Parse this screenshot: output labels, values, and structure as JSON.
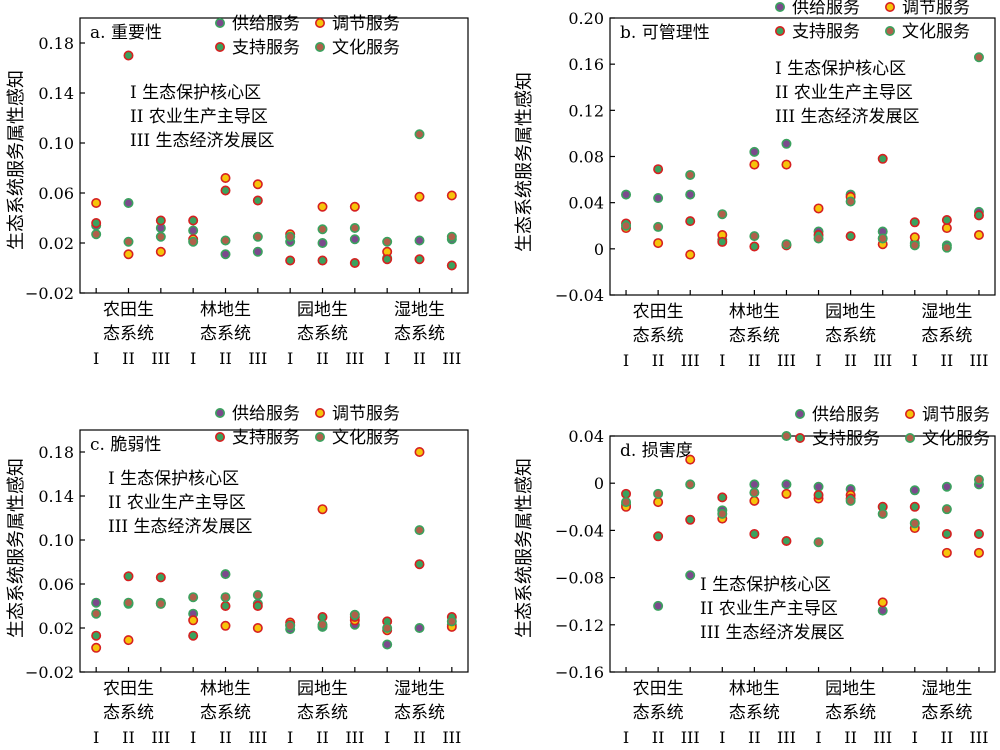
{
  "colors": {
    "supply": "#7b4a8c",
    "regulating": "#f6c40a",
    "support": "#3aa25e",
    "cultural": "#b0604a",
    "supply_ring": "#3aa25e",
    "regulating_ring": "#d62020",
    "support_ring": "#d62020",
    "cultural_ring": "#3aa25e"
  },
  "shared": {
    "ylabel": "生态系统服务属性感知",
    "legend": [
      "供给服务",
      "调节服务",
      "支持服务",
      "文化服务"
    ],
    "zone_labels": [
      "I 生态保护核心区",
      "II 农业生产主导区",
      "III 生态经济发展区"
    ],
    "groups": [
      "农田生\n态系统",
      "林地生\n态系统",
      "园地生\n态系统",
      "湿地生\n态系统"
    ],
    "zones": [
      "I",
      "II",
      "III"
    ]
  },
  "chart_data": [
    {
      "type": "scatter",
      "panel": "a",
      "title": "a. 重要性",
      "ylim": [
        -0.02,
        0.2
      ],
      "yticks": [
        -0.02,
        0.02,
        0.06,
        0.1,
        0.14,
        0.18
      ],
      "ytick_labels": [
        "−0.02",
        "0.02",
        "0.06",
        "0.10",
        "0.14",
        "0.18"
      ],
      "series": [
        {
          "name": "供给服务",
          "values": [
            0.034,
            0.052,
            0.032,
            0.03,
            0.011,
            0.013,
            0.021,
            0.02,
            0.023,
            0.008,
            0.022,
            0.023
          ]
        },
        {
          "name": "调节服务",
          "values": [
            0.052,
            0.011,
            0.013,
            0.023,
            0.072,
            0.067,
            0.027,
            0.049,
            0.049,
            0.013,
            0.057,
            0.058
          ]
        },
        {
          "name": "支持服务",
          "values": [
            0.036,
            0.17,
            0.038,
            0.038,
            0.062,
            0.054,
            0.006,
            0.006,
            0.004,
            0.007,
            0.007,
            0.002
          ]
        },
        {
          "name": "文化服务",
          "values": [
            0.027,
            0.021,
            0.025,
            0.021,
            0.022,
            0.025,
            0.025,
            0.031,
            0.032,
            0.021,
            0.107,
            0.025
          ]
        }
      ]
    },
    {
      "type": "scatter",
      "panel": "b",
      "title": "b. 可管理性",
      "ylim": [
        -0.04,
        0.2
      ],
      "yticks": [
        -0.04,
        0,
        0.04,
        0.08,
        0.12,
        0.16,
        0.2
      ],
      "ytick_labels": [
        "−0.04",
        "0",
        "0.04",
        "0.08",
        "0.12",
        "0.16",
        "0.20"
      ],
      "series": [
        {
          "name": "供给服务",
          "values": [
            0.047,
            0.044,
            0.047,
            0.008,
            0.084,
            0.091,
            0.015,
            0.047,
            0.015,
            0.005,
            0.003,
            0.032
          ]
        },
        {
          "name": "调节服务",
          "values": [
            0.018,
            0.005,
            -0.005,
            0.012,
            0.073,
            0.073,
            0.035,
            0.045,
            0.004,
            0.01,
            0.018,
            0.012
          ]
        },
        {
          "name": "支持服务",
          "values": [
            0.022,
            0.069,
            0.024,
            0.006,
            0.002,
            0.003,
            0.012,
            0.011,
            0.078,
            0.023,
            0.025,
            0.029
          ]
        },
        {
          "name": "文化服务",
          "values": [
            0.02,
            0.019,
            0.064,
            0.03,
            0.011,
            0.004,
            0.009,
            0.041,
            0.009,
            0.003,
            0.001,
            0.166
          ]
        }
      ]
    },
    {
      "type": "scatter",
      "panel": "c",
      "title": "c. 脆弱性",
      "ylim": [
        -0.02,
        0.2
      ],
      "yticks": [
        -0.02,
        0.02,
        0.06,
        0.1,
        0.14,
        0.18
      ],
      "ytick_labels": [
        "−0.02",
        "0.02",
        "0.06",
        "0.10",
        "0.14",
        "0.18"
      ],
      "series": [
        {
          "name": "供给服务",
          "values": [
            0.043,
            0.042,
            0.043,
            0.033,
            0.069,
            0.042,
            0.019,
            0.021,
            0.023,
            0.005,
            0.02,
            0.023
          ]
        },
        {
          "name": "调节服务",
          "values": [
            0.002,
            0.009,
            0.042,
            0.027,
            0.022,
            0.02,
            0.025,
            0.128,
            0.027,
            0.018,
            0.18,
            0.021
          ]
        },
        {
          "name": "支持服务",
          "values": [
            0.013,
            0.067,
            0.066,
            0.013,
            0.04,
            0.04,
            0.023,
            0.03,
            0.03,
            0.026,
            0.078,
            0.03
          ]
        },
        {
          "name": "文化服务",
          "values": [
            0.033,
            0.043,
            0.042,
            0.048,
            0.048,
            0.05,
            0.022,
            0.023,
            0.032,
            0.02,
            0.109,
            0.026
          ]
        }
      ]
    },
    {
      "type": "scatter",
      "panel": "d",
      "title": "d. 损害度",
      "ylim": [
        -0.16,
        0.04
      ],
      "yticks": [
        -0.16,
        -0.12,
        -0.08,
        -0.04,
        0,
        0.04
      ],
      "ytick_labels": [
        "−0.16",
        "−0.12",
        "−0.08",
        "−0.04",
        "0",
        "0.04"
      ],
      "series": [
        {
          "name": "供给服务",
          "values": [
            -0.018,
            -0.104,
            -0.078,
            -0.023,
            -0.001,
            -0.001,
            -0.003,
            -0.005,
            -0.108,
            -0.006,
            -0.003,
            -0.001
          ]
        },
        {
          "name": "调节服务",
          "values": [
            -0.02,
            -0.016,
            0.02,
            -0.03,
            -0.015,
            -0.009,
            -0.013,
            -0.01,
            -0.101,
            -0.038,
            -0.059,
            -0.059
          ]
        },
        {
          "name": "支持服务",
          "values": [
            -0.009,
            -0.045,
            -0.031,
            -0.012,
            -0.043,
            -0.049,
            -0.01,
            -0.013,
            -0.02,
            -0.02,
            -0.043,
            -0.043
          ]
        },
        {
          "name": "文化服务",
          "values": [
            -0.016,
            -0.009,
            -0.001,
            -0.026,
            -0.008,
            0.04,
            -0.05,
            -0.015,
            -0.026,
            -0.034,
            -0.022,
            0.003
          ]
        }
      ]
    }
  ]
}
